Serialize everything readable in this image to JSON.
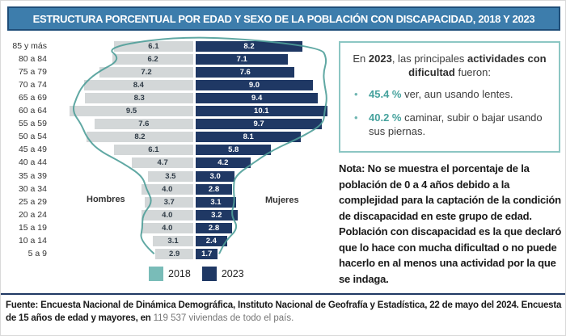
{
  "title": "ESTRUCTURA PORCENTUAL POR EDAD Y SEXO DE LA POBLACIÓN CON DISCAPACIDAD, 2018 Y 2023",
  "chart_data": {
    "type": "bar",
    "variant": "population-pyramid",
    "title": "Estructura porcentual por edad y sexo de la población con discapacidad, 2018 y 2023",
    "x_unit": "percent",
    "axes_hidden": true,
    "categories": [
      "85 y más",
      "80 a 84",
      "75 a 79",
      "70 a 74",
      "65 a 69",
      "60 a 64",
      "55 a 59",
      "50 a 54",
      "45 a 49",
      "40 a 44",
      "35 a 39",
      "30 a 34",
      "25 a 29",
      "20 a 24",
      "15 a 19",
      "10 a 14",
      "5 a 9"
    ],
    "side_labels": {
      "left": "Hombres",
      "right": "Mujeres"
    },
    "series": [
      {
        "name": "Hombres 2023",
        "side": "left",
        "style": "bar",
        "color": "#d3d7d8",
        "values": [
          6.1,
          6.2,
          7.2,
          8.4,
          8.3,
          9.5,
          7.6,
          8.2,
          6.1,
          4.7,
          3.5,
          4.0,
          3.7,
          4.0,
          4.0,
          3.1,
          2.9
        ]
      },
      {
        "name": "Mujeres 2023",
        "side": "right",
        "style": "bar",
        "color": "#1f3864",
        "values": [
          8.2,
          7.1,
          7.6,
          9.0,
          9.4,
          10.1,
          9.7,
          8.1,
          5.8,
          4.2,
          3.0,
          2.8,
          3.1,
          3.2,
          2.8,
          2.4,
          1.7
        ]
      },
      {
        "name": "2018 (contorno)",
        "style": "line-outline",
        "color": "#4f9e99",
        "estimated_from_outline": true,
        "hombres_values": [
          6.8,
          5.5,
          7.4,
          8.5,
          9.0,
          9.3,
          8.6,
          8.2,
          7.3,
          5.4,
          3.9,
          3.6,
          3.1,
          3.9,
          3.9,
          4.1,
          3.0
        ],
        "mujeres_values": [
          9.6,
          10.1,
          9.8,
          9.9,
          10.1,
          9.9,
          9.8,
          8.1,
          5.9,
          4.4,
          3.0,
          2.9,
          3.0,
          2.7,
          3.3,
          2.3,
          1.8
        ]
      }
    ],
    "legend": [
      {
        "label": "2018",
        "color": "#79bcb8"
      },
      {
        "label": "2023",
        "color": "#1f3864"
      }
    ],
    "legend_position": "bottom-center"
  },
  "callout": {
    "h": {
      "p1": "En ",
      "b1": "2023",
      "p2": ", las principales ",
      "b2": "actividades con dificultad",
      "p3": " fueron:"
    },
    "bullets": [
      {
        "pct": "45.4 %",
        "text": " ver, aun usando lentes."
      },
      {
        "pct": "40.2 %",
        "text": " caminar, subir o bajar usando sus piernas."
      }
    ]
  },
  "nota": {
    "label": "Nota:",
    "text": " No se muestra el porcentaje de la población de 0 a 4 años debido a la complejidad para la captación de la condición de discapacidad en este grupo de edad. Población con discapacidad es la que declaró que lo hace con mucha dificultad o no puede hacerlo en al menos una actividad por la que se indaga."
  },
  "fuente": {
    "main": "Fuente: Encuesta Nacional de Dinámica Demográfica, Instituto Nacional de Geofrafía y Estadística, 22 de mayo del 2024. Encuesta de 15 años de edad y mayores, en ",
    "muted": "119 537 viviendas de todo el país."
  },
  "colors": {
    "banner_bg": "#3d7dac",
    "banner_border": "#1f4e79",
    "men_bar": "#d3d7d8",
    "women_bar": "#1f3864",
    "teal_accent": "#79bcb8",
    "outline_line": "#4f9e99",
    "callout_border": "#8cc6c3",
    "footer_rule": "#1f3864"
  }
}
